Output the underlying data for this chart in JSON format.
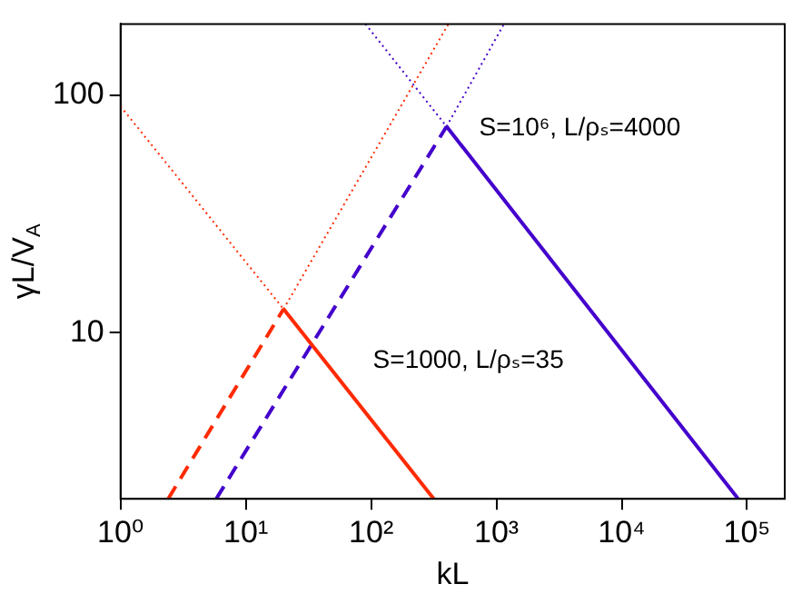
{
  "chart_data": {
    "type": "line",
    "xlabel": "kL",
    "ylabel": "γL/V$_{A}$",
    "log": "xy",
    "grid": false,
    "legend": false,
    "xlim": [
      1,
      200000
    ],
    "ylim": [
      2,
      200
    ],
    "xticks": [
      {
        "value": 1,
        "label": "10⁰"
      },
      {
        "value": 10,
        "label": "10¹"
      },
      {
        "value": 100,
        "label": "10²"
      },
      {
        "value": 1000,
        "label": "10³"
      },
      {
        "value": 10000,
        "label": "10⁴"
      },
      {
        "value": 100000,
        "label": "10⁵"
      }
    ],
    "yticks": [
      10,
      100
    ],
    "annotations": [
      "S=10⁶, L/ρₛ=4000",
      "S=1000, L/ρₛ=35"
    ],
    "series": [
      {
        "color": "#ff2a00",
        "line_style": "dotted",
        "x": [
          1,
          20
        ],
        "values": [
          90,
          12.6
        ]
      },
      {
        "color": "#ff2a00",
        "line_style": "dotted",
        "x": [
          20,
          414
        ],
        "values": [
          12.6,
          200
        ]
      },
      {
        "color": "#ff2a00",
        "line_style": "dashed",
        "x": [
          2.4,
          20
        ],
        "values": [
          2,
          12.6
        ]
      },
      {
        "color": "#ff2a00",
        "line_style": "solid",
        "x": [
          20,
          316
        ],
        "values": [
          12.6,
          2
        ]
      },
      {
        "color": "#4400cc",
        "line_style": "dotted",
        "x": [
          90,
          400
        ],
        "values": [
          200,
          74
        ]
      },
      {
        "color": "#4400cc",
        "line_style": "dotted",
        "x": [
          400,
          1150
        ],
        "values": [
          74,
          200
        ]
      },
      {
        "color": "#4400cc",
        "line_style": "dashed",
        "x": [
          5.8,
          400
        ],
        "values": [
          2,
          74
        ]
      },
      {
        "color": "#4400cc",
        "line_style": "solid",
        "x": [
          400,
          85000
        ],
        "values": [
          74,
          2
        ]
      }
    ]
  }
}
